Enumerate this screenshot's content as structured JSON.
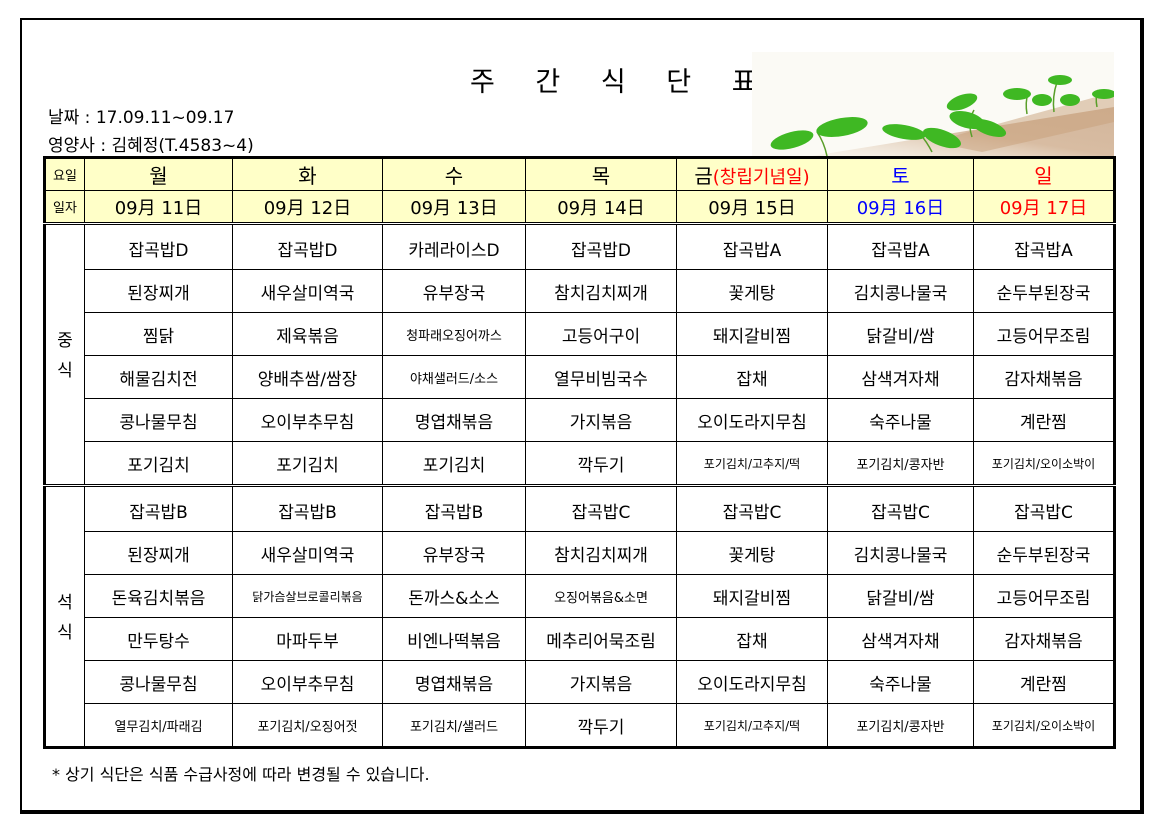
{
  "document": {
    "title": "주 간 식 단 표",
    "date_line": "날짜 : 17.09.11~09.17",
    "dietitian_line": "영양사 : 김혜정(T.4583~4)",
    "footnote": "* 상기 식단은 식품 수급사정에 따라 변경될 수 있습니다.",
    "image": "sprouts-illustration"
  },
  "colors": {
    "header_bg": "#ffffc8",
    "holiday_red": "#ff0000",
    "saturday_blue": "#0000ff"
  },
  "table": {
    "row_labels": {
      "day": "요일",
      "date": "일자"
    },
    "meal_labels": {
      "lunch": "중\n식",
      "dinner": "석\n식"
    },
    "days": [
      {
        "name": "월",
        "name_extra": "",
        "date": "09月 11日"
      },
      {
        "name": "화",
        "name_extra": "",
        "date": "09月 12日"
      },
      {
        "name": "수",
        "name_extra": "",
        "date": "09月 13日"
      },
      {
        "name": "목",
        "name_extra": "",
        "date": "09月 14日"
      },
      {
        "name": "금",
        "name_extra": "(창립기념일)",
        "date": "09月 15日"
      },
      {
        "name": "토",
        "name_extra": "",
        "date": "09月 16日"
      },
      {
        "name": "일",
        "name_extra": "",
        "date": "09月 17日"
      }
    ],
    "lunch": [
      [
        "잡곡밥D",
        "잡곡밥D",
        "카레라이스D",
        "잡곡밥D",
        "잡곡밥A",
        "잡곡밥A",
        "잡곡밥A"
      ],
      [
        "된장찌개",
        "새우살미역국",
        "유부장국",
        "참치김치찌개",
        "꽃게탕",
        "김치콩나물국",
        "순두부된장국"
      ],
      [
        "찜닭",
        "제육볶음",
        "청파래오징어까스",
        "고등어구이",
        "돼지갈비찜",
        "닭갈비/쌈",
        "고등어무조림"
      ],
      [
        "해물김치전",
        "양배추쌈/쌈장",
        "야채샐러드/소스",
        "열무비빔국수",
        "잡채",
        "삼색겨자채",
        "감자채볶음"
      ],
      [
        "콩나물무침",
        "오이부추무침",
        "명엽채볶음",
        "가지볶음",
        "오이도라지무침",
        "숙주나물",
        "계란찜"
      ],
      [
        "포기김치",
        "포기김치",
        "포기김치",
        "깍두기",
        "포기김치/고추지/떡",
        "포기김치/콩자반",
        "포기김치/오이소박이"
      ]
    ],
    "dinner": [
      [
        "잡곡밥B",
        "잡곡밥B",
        "잡곡밥B",
        "잡곡밥C",
        "잡곡밥C",
        "잡곡밥C",
        "잡곡밥C"
      ],
      [
        "된장찌개",
        "새우살미역국",
        "유부장국",
        "참치김치찌개",
        "꽃게탕",
        "김치콩나물국",
        "순두부된장국"
      ],
      [
        "돈육김치볶음",
        "닭가슴살브로콜리볶음",
        "돈까스&소스",
        "오징어볶음&소면",
        "돼지갈비찜",
        "닭갈비/쌈",
        "고등어무조림"
      ],
      [
        "만두탕수",
        "마파두부",
        "비엔나떡볶음",
        "메추리어묵조림",
        "잡채",
        "삼색겨자채",
        "감자채볶음"
      ],
      [
        "콩나물무침",
        "오이부추무침",
        "명엽채볶음",
        "가지볶음",
        "오이도라지무침",
        "숙주나물",
        "계란찜"
      ],
      [
        "열무김치/파래김",
        "포기김치/오징어젓",
        "포기김치/샐러드",
        "깍두기",
        "포기김치/고추지/떡",
        "포기김치/콩자반",
        "포기김치/오이소박이"
      ]
    ]
  }
}
